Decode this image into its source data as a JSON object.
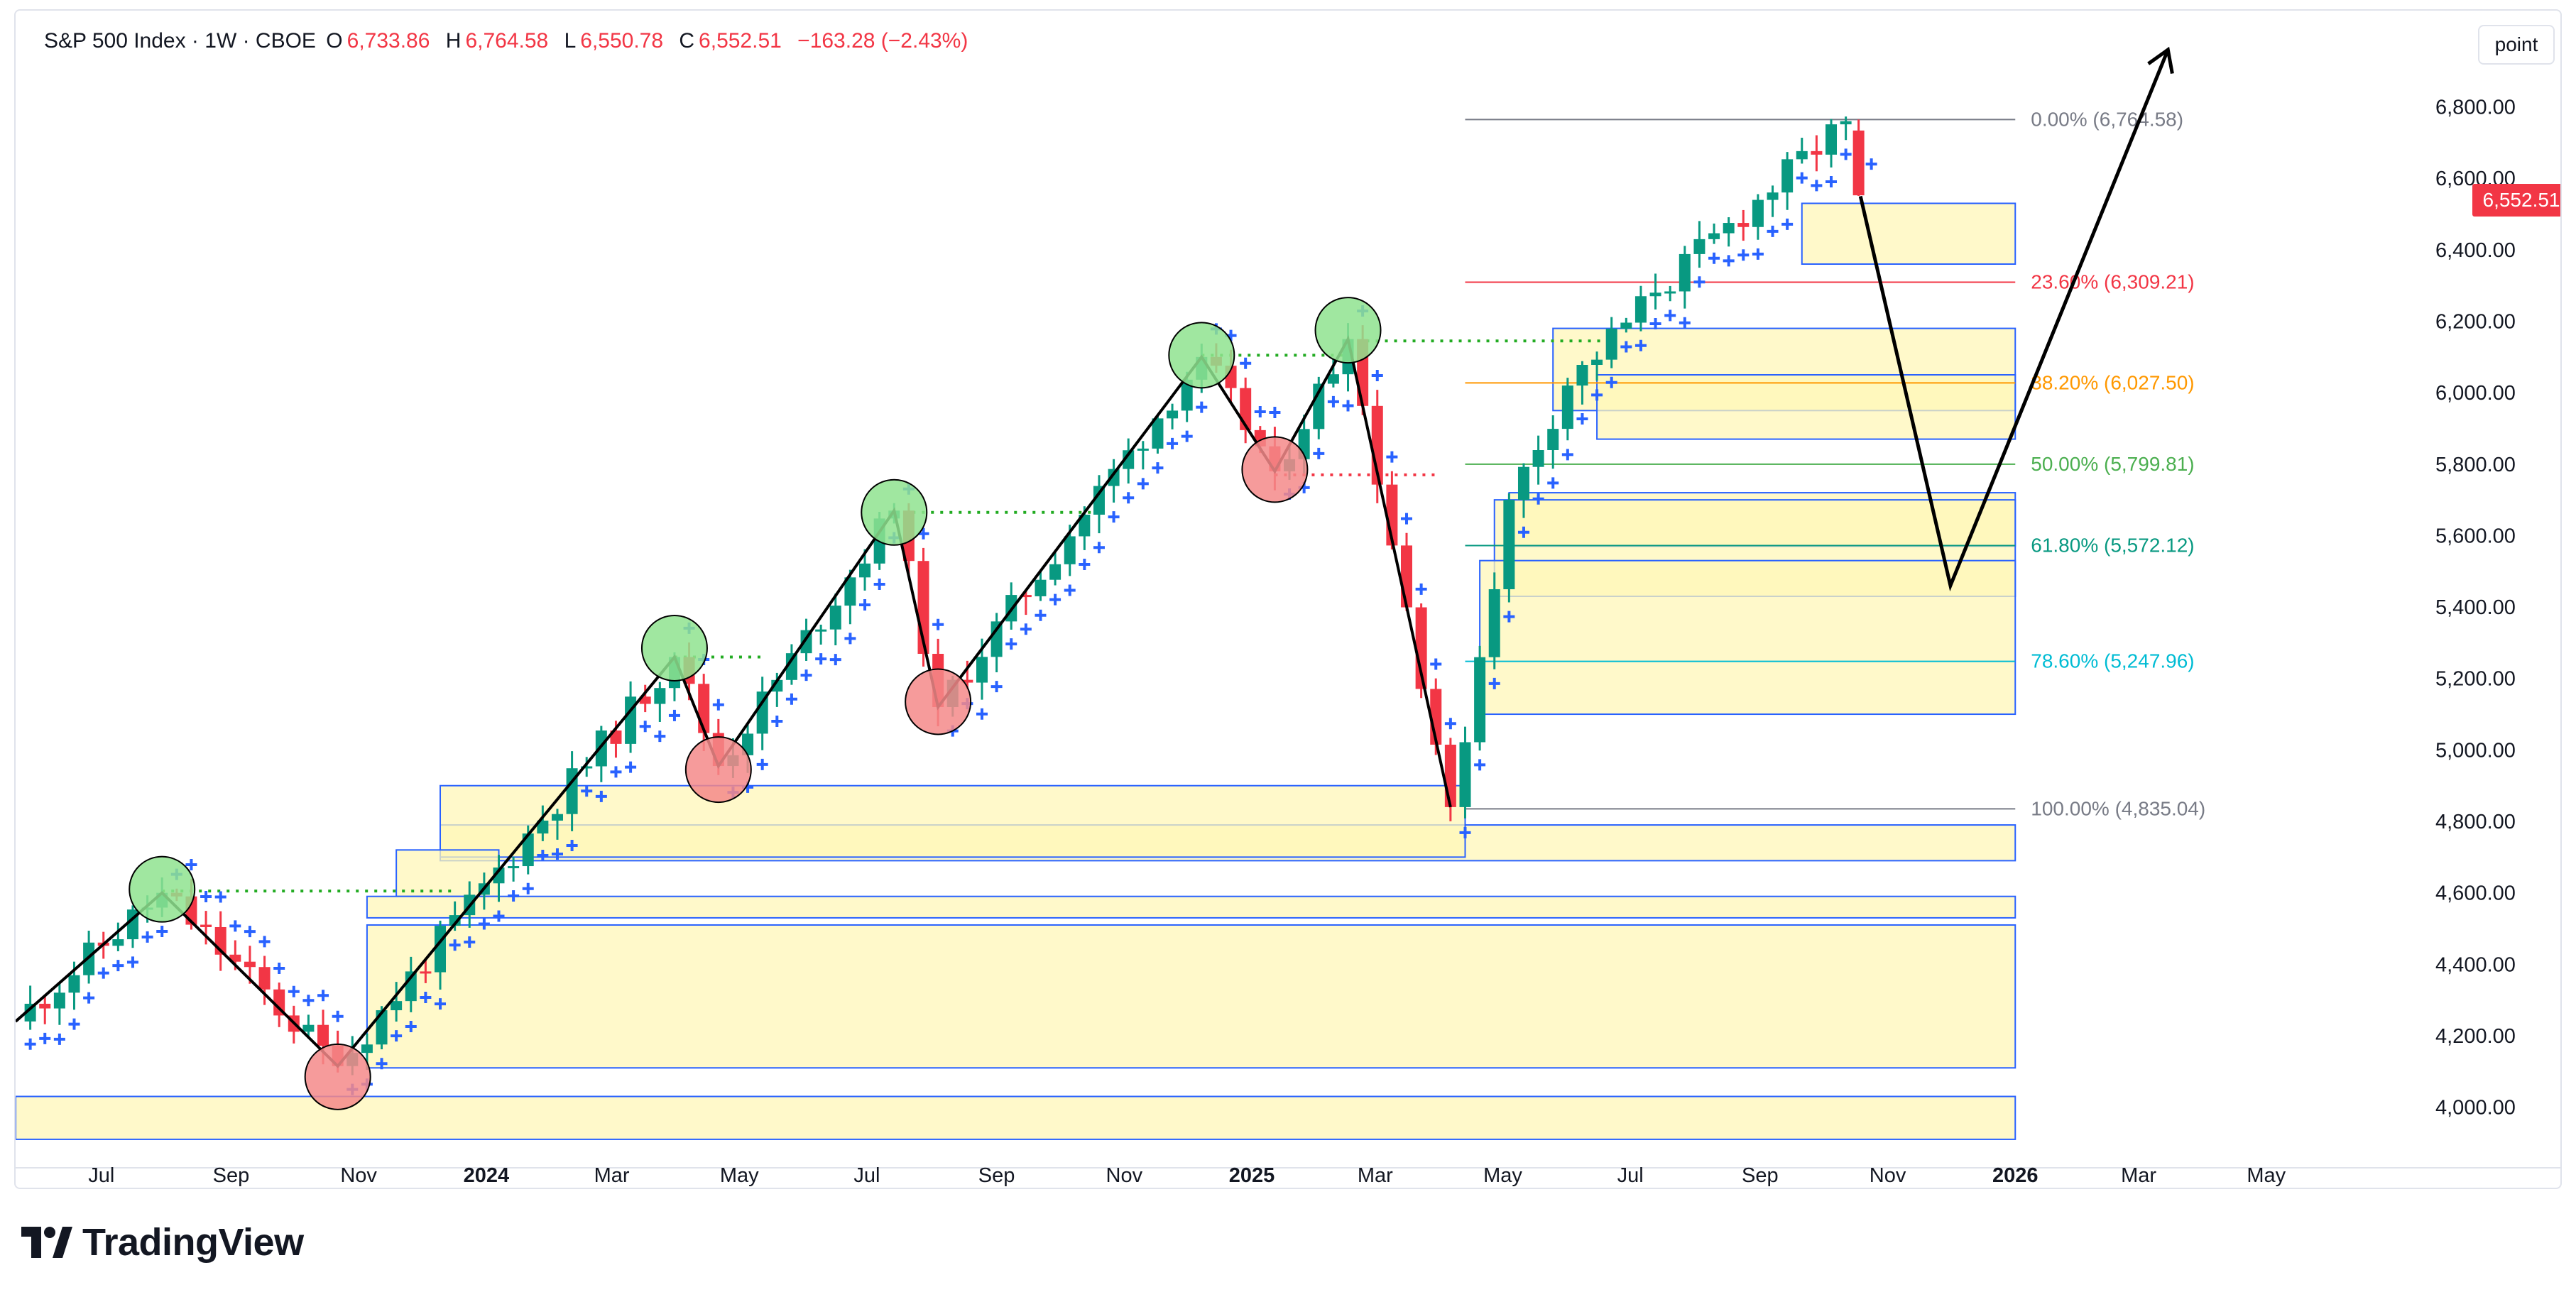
{
  "header": {
    "title": "S&P 500 Index · 1W · CBOE",
    "o_label": "O",
    "o_value": "6,733.86",
    "h_label": "H",
    "h_value": "6,764.58",
    "l_label": "L",
    "l_value": "6,550.78",
    "c_label": "C",
    "c_value": "6,552.51",
    "change": "−163.28 (−2.43%)"
  },
  "unit_button": "point",
  "price_badge": "6,552.51",
  "brand": "TradingView",
  "colors": {
    "up": "#089981",
    "down": "#f23645",
    "psar": "#2962ff",
    "zone_fill": "#fff7b8",
    "zone_border": "#2962ff",
    "badge": "#f23645"
  },
  "chart_data": {
    "type": "candlestick",
    "title": "S&P 500 Index · 1W · CBOE",
    "y_range": [
      3880,
      6980
    ],
    "y_ticks": [
      "4,000.00",
      "4,200.00",
      "4,400.00",
      "4,600.00",
      "4,800.00",
      "5,000.00",
      "5,200.00",
      "5,400.00",
      "5,600.00",
      "5,800.00",
      "6,000.00",
      "6,200.00",
      "6,400.00",
      "6,600.00",
      "6,800.00"
    ],
    "x_start": "2023-05-21",
    "x_end": "2026-06-21",
    "x_ticks": [
      {
        "label": "Jul",
        "date": "2023-07-01",
        "bold": false
      },
      {
        "label": "Sep",
        "date": "2023-09-01",
        "bold": false
      },
      {
        "label": "Nov",
        "date": "2023-11-01",
        "bold": false
      },
      {
        "label": "2024",
        "date": "2024-01-01",
        "bold": true
      },
      {
        "label": "Mar",
        "date": "2024-03-01",
        "bold": false
      },
      {
        "label": "May",
        "date": "2024-05-01",
        "bold": false
      },
      {
        "label": "Jul",
        "date": "2024-07-01",
        "bold": false
      },
      {
        "label": "Sep",
        "date": "2024-09-01",
        "bold": false
      },
      {
        "label": "Nov",
        "date": "2024-11-01",
        "bold": false
      },
      {
        "label": "2025",
        "date": "2025-01-01",
        "bold": true
      },
      {
        "label": "Mar",
        "date": "2025-03-01",
        "bold": false
      },
      {
        "label": "May",
        "date": "2025-05-01",
        "bold": false
      },
      {
        "label": "Jul",
        "date": "2025-07-01",
        "bold": false
      },
      {
        "label": "Sep",
        "date": "2025-09-01",
        "bold": false
      },
      {
        "label": "Nov",
        "date": "2025-11-01",
        "bold": false
      },
      {
        "label": "2026",
        "date": "2026-01-01",
        "bold": true
      },
      {
        "label": "Mar",
        "date": "2026-03-01",
        "bold": false
      },
      {
        "label": "May",
        "date": "2026-05-01",
        "bold": false
      }
    ],
    "pivots": [
      {
        "date": "2023-05-21",
        "price": 4240
      },
      {
        "date": "2023-07-30",
        "price": 4600
      },
      {
        "date": "2023-10-22",
        "price": 4115
      },
      {
        "date": "2024-03-31",
        "price": 5260
      },
      {
        "date": "2024-04-21",
        "price": 4955
      },
      {
        "date": "2024-07-14",
        "price": 5670
      },
      {
        "date": "2024-08-04",
        "price": 5120
      },
      {
        "date": "2024-12-08",
        "price": 6100
      },
      {
        "date": "2025-01-12",
        "price": 5780
      },
      {
        "date": "2025-02-16",
        "price": 6150
      },
      {
        "date": "2025-04-06",
        "price": 4840
      },
      {
        "date": "2025-05-04",
        "price": 5700
      },
      {
        "date": "2025-06-01",
        "price": 6020
      },
      {
        "date": "2025-07-13",
        "price": 6280
      },
      {
        "date": "2025-10-12",
        "price": 6760
      }
    ],
    "last_close": 6552.51,
    "last_bar_date": "2025-10-12",
    "projection_path": [
      {
        "date": "2025-10-19",
        "price": 6550
      },
      {
        "date": "2025-12-01",
        "price": 5460
      },
      {
        "date": "2026-03-15",
        "price": 6960
      }
    ],
    "highs": [
      {
        "date": "2023-07-30",
        "price": 4600
      },
      {
        "date": "2024-03-31",
        "price": 5275
      },
      {
        "date": "2024-07-14",
        "price": 5670
      },
      {
        "date": "2024-12-08",
        "price": 6100
      },
      {
        "date": "2025-02-16",
        "price": 6150
      }
    ],
    "lows": [
      {
        "date": "2023-10-22",
        "price": 4100
      },
      {
        "date": "2024-04-21",
        "price": 4955
      },
      {
        "date": "2024-08-04",
        "price": 5130
      },
      {
        "date": "2025-01-12",
        "price": 5790
      }
    ],
    "highlight_markers": [
      {
        "kind": "high",
        "date": "2023-07-30",
        "price": 4610
      },
      {
        "kind": "low",
        "date": "2023-10-22",
        "price": 4085
      },
      {
        "kind": "high",
        "date": "2024-03-31",
        "price": 5285
      },
      {
        "kind": "low",
        "date": "2024-04-21",
        "price": 4945
      },
      {
        "kind": "high",
        "date": "2024-07-14",
        "price": 5665
      },
      {
        "kind": "low",
        "date": "2024-08-04",
        "price": 5135
      },
      {
        "kind": "high",
        "date": "2024-12-08",
        "price": 6105
      },
      {
        "kind": "low",
        "date": "2025-01-12",
        "price": 5785
      },
      {
        "kind": "high",
        "date": "2025-02-16",
        "price": 6175
      }
    ],
    "prior_high_levels": [
      {
        "date_from": "2023-07-30",
        "date_to": "2023-12-17",
        "price": 4605,
        "color": "#22ab22"
      },
      {
        "date_from": "2024-03-31",
        "date_to": "2024-05-12",
        "price": 5260,
        "color": "#22ab22"
      },
      {
        "date_from": "2024-07-14",
        "date_to": "2024-10-20",
        "price": 5665,
        "color": "#22ab22"
      },
      {
        "date_from": "2024-12-08",
        "date_to": "2025-02-16",
        "price": 6105,
        "color": "#22ab22"
      },
      {
        "date_from": "2025-02-16",
        "date_to": "2025-06-22",
        "price": 6145,
        "color": "#22ab22"
      },
      {
        "date_from": "2025-01-12",
        "date_to": "2025-03-30",
        "price": 5770,
        "color": "#f23645"
      }
    ],
    "supply_demand_zones": [
      {
        "date_from": "2025-09-21",
        "date_to": "2026-01-01",
        "top": 6530,
        "bottom": 6360
      },
      {
        "date_from": "2025-05-25",
        "date_to": "2026-01-01",
        "top": 6180,
        "bottom": 5950
      },
      {
        "date_from": "2025-06-15",
        "date_to": "2026-01-01",
        "top": 6050,
        "bottom": 5870
      },
      {
        "date_from": "2025-05-04",
        "date_to": "2026-01-01",
        "top": 5720,
        "bottom": 5570
      },
      {
        "date_from": "2025-04-27",
        "date_to": "2026-01-01",
        "top": 5700,
        "bottom": 5430
      },
      {
        "date_from": "2025-04-20",
        "date_to": "2026-01-01",
        "top": 5530,
        "bottom": 5100
      },
      {
        "date_from": "2023-12-10",
        "date_to": "2026-01-01",
        "top": 4790,
        "bottom": 4690
      },
      {
        "date_from": "2023-12-10",
        "date_to": "2025-04-13",
        "top": 4900,
        "bottom": 4700
      },
      {
        "date_from": "2023-11-19",
        "date_to": "2024-01-07",
        "top": 4720,
        "bottom": 4590
      },
      {
        "date_from": "2023-11-05",
        "date_to": "2026-01-01",
        "top": 4590,
        "bottom": 4530
      },
      {
        "date_from": "2023-11-05",
        "date_to": "2026-01-01",
        "top": 4510,
        "bottom": 4110
      },
      {
        "date_from": "2023-05-21",
        "date_to": "2026-01-01",
        "top": 4030,
        "bottom": 3910
      }
    ],
    "fib_start_date": "2025-04-13",
    "fib_end_date": "2026-01-01",
    "fib_levels": [
      {
        "label": "0.00% (6,764.58)",
        "price": 6764.58,
        "color": "#787b86"
      },
      {
        "label": "23.60% (6,309.21)",
        "price": 6309.21,
        "color": "#f23645"
      },
      {
        "label": "38.20% (6,027.50)",
        "price": 6027.5,
        "color": "#ff9800"
      },
      {
        "label": "50.00% (5,799.81)",
        "price": 5799.81,
        "color": "#4caf50"
      },
      {
        "label": "61.80% (5,572.12)",
        "price": 5572.12,
        "color": "#089981"
      },
      {
        "label": "78.60% (5,247.96)",
        "price": 5247.96,
        "color": "#00bcd4"
      },
      {
        "label": "100.00% (4,835.04)",
        "price": 4835.04,
        "color": "#787b86"
      }
    ]
  }
}
